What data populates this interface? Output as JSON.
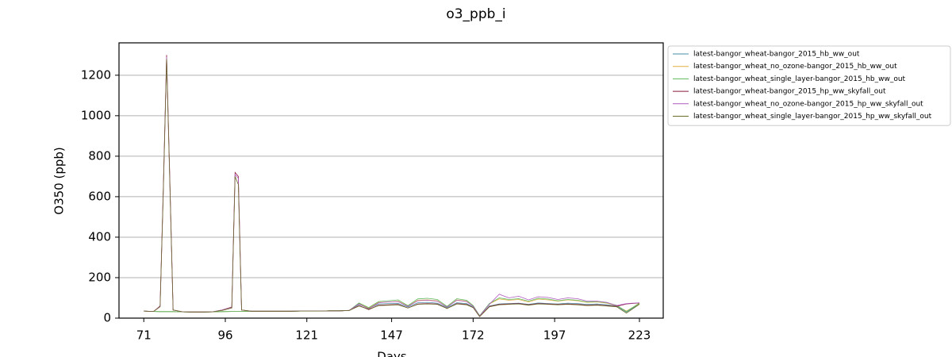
{
  "chart_data": {
    "type": "line",
    "title": "o3_ppb_i",
    "x_label": "Days",
    "y_label": "O350 (ppb)",
    "x": [
      71,
      74,
      76,
      77,
      78,
      79,
      80,
      83,
      86,
      89,
      92,
      95,
      98,
      99,
      100,
      101,
      104,
      107,
      110,
      113,
      116,
      119,
      122,
      125,
      128,
      131,
      134,
      137,
      140,
      143,
      146,
      149,
      152,
      155,
      158,
      161,
      164,
      167,
      170,
      172,
      174,
      177,
      180,
      183,
      186,
      189,
      192,
      195,
      198,
      201,
      204,
      207,
      210,
      213,
      216,
      219,
      223
    ],
    "xlim": [
      63.4,
      230.3
    ],
    "xticks": [
      71,
      96,
      121,
      147,
      172,
      197,
      223
    ],
    "ylim": [
      0,
      1360
    ],
    "yticks": [
      0,
      200,
      400,
      600,
      800,
      1000,
      1200
    ],
    "grid": "y",
    "legend": "outside right",
    "series": [
      {
        "name": "latest-bangor_wheat-bangor_2015_hb_ww_out",
        "color": "#4a8fa8",
        "values": [
          35,
          33,
          32,
          32,
          32,
          32,
          32,
          31,
          30,
          30,
          31,
          32,
          33,
          33,
          33,
          33,
          34,
          34,
          34,
          34,
          34,
          35,
          35,
          35,
          36,
          36,
          38,
          68,
          48,
          70,
          72,
          73,
          55,
          76,
          78,
          74,
          52,
          76,
          72,
          55,
          8,
          60,
          70,
          72,
          74,
          68,
          75,
          72,
          70,
          74,
          72,
          68,
          70,
          66,
          60,
          30,
          70
        ]
      },
      {
        "name": "latest-bangor_wheat_no_ozone-bangor_2015_hb_ww_out",
        "color": "#e0b040",
        "values": [
          35,
          33,
          32,
          32,
          32,
          32,
          32,
          31,
          30,
          30,
          31,
          32,
          33,
          33,
          33,
          33,
          34,
          34,
          34,
          34,
          34,
          35,
          35,
          35,
          36,
          36,
          38,
          72,
          50,
          78,
          80,
          84,
          60,
          88,
          90,
          86,
          55,
          90,
          84,
          60,
          10,
          70,
          95,
          88,
          92,
          80,
          94,
          90,
          84,
          90,
          86,
          78,
          80,
          74,
          62,
          35,
          72
        ]
      },
      {
        "name": "latest-bangor_wheat_single_layer-bangor_2015_hb_ww_out",
        "color": "#5cb85c",
        "values": [
          35,
          33,
          32,
          32,
          32,
          32,
          32,
          31,
          30,
          30,
          31,
          32,
          33,
          33,
          33,
          33,
          34,
          34,
          34,
          34,
          34,
          35,
          35,
          35,
          36,
          36,
          38,
          75,
          52,
          82,
          86,
          90,
          62,
          95,
          98,
          92,
          58,
          96,
          88,
          62,
          12,
          72,
          100,
          92,
          96,
          84,
          98,
          94,
          86,
          92,
          88,
          80,
          82,
          76,
          64,
          32,
          75
        ]
      },
      {
        "name": "latest-bangor_wheat-bangor_2015_hp_ww_skyfall_out",
        "color": "#8b1a3a",
        "values": [
          35,
          33,
          60,
          650,
          1300,
          680,
          40,
          31,
          30,
          30,
          31,
          40,
          55,
          720,
          700,
          40,
          34,
          34,
          34,
          34,
          34,
          35,
          35,
          35,
          36,
          36,
          38,
          62,
          42,
          64,
          66,
          68,
          50,
          70,
          72,
          70,
          48,
          72,
          68,
          52,
          8,
          58,
          68,
          70,
          72,
          66,
          72,
          70,
          68,
          70,
          68,
          64,
          66,
          62,
          58,
          70,
          75
        ]
      },
      {
        "name": "latest-bangor_wheat_no_ozone-bangor_2015_hp_ww_skyfall_out",
        "color": "#b05ac0",
        "values": [
          35,
          33,
          58,
          640,
          1290,
          670,
          40,
          31,
          30,
          30,
          31,
          40,
          52,
          710,
          690,
          40,
          34,
          34,
          34,
          34,
          34,
          35,
          35,
          35,
          36,
          36,
          38,
          70,
          46,
          76,
          80,
          82,
          58,
          86,
          88,
          84,
          54,
          88,
          82,
          58,
          10,
          68,
          118,
          100,
          108,
          90,
          106,
          102,
          92,
          100,
          96,
          84,
          84,
          78,
          62,
          72,
          76
        ]
      },
      {
        "name": "latest-bangor_wheat_single_layer-bangor_2015_hp_ww_skyfall_out",
        "color": "#6b6b2a",
        "values": [
          35,
          33,
          56,
          630,
          1280,
          660,
          40,
          31,
          30,
          30,
          31,
          38,
          50,
          700,
          660,
          40,
          34,
          34,
          34,
          34,
          34,
          35,
          35,
          35,
          36,
          36,
          38,
          60,
          44,
          62,
          64,
          66,
          50,
          68,
          70,
          68,
          48,
          70,
          66,
          52,
          8,
          56,
          66,
          68,
          70,
          64,
          70,
          68,
          66,
          68,
          66,
          62,
          64,
          60,
          56,
          25,
          68
        ]
      }
    ]
  }
}
